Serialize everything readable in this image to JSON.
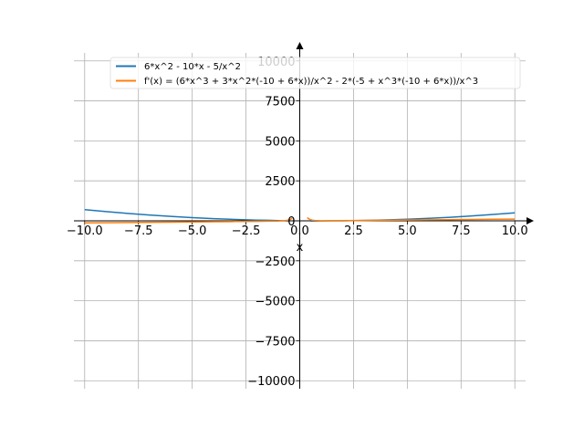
{
  "chart_data": {
    "type": "line",
    "title": "",
    "xlabel": "x",
    "ylabel": "",
    "xlim": [
      -10.5,
      10.5
    ],
    "ylim": [
      -10500,
      10500
    ],
    "grid": true,
    "legend_position": "top-right",
    "x_ticks": [
      -10.0,
      -7.5,
      -5.0,
      -2.5,
      0.0,
      2.5,
      5.0,
      7.5,
      10.0
    ],
    "x_tick_labels": [
      "−10.0",
      "−7.5",
      "−5.0",
      "−2.5",
      "0.0",
      "2.5",
      "5.0",
      "7.5",
      "10.0"
    ],
    "y_ticks": [
      -10000,
      -7500,
      -5000,
      -2500,
      0,
      2500,
      5000,
      7500,
      10000
    ],
    "y_tick_labels": [
      "−10000",
      "−7500",
      "−5000",
      "−2500",
      "0",
      "2500",
      "5000",
      "7500",
      "10000"
    ],
    "series": [
      {
        "name": "6*x^2 - 10*x - 5/x^2",
        "color": "#1f77b4",
        "x": [
          -10,
          -9,
          -8,
          -7,
          -6,
          -5,
          -4,
          -3,
          -2,
          -1.5,
          -1,
          -0.7,
          -0.5,
          null,
          0.5,
          0.7,
          1,
          1.5,
          2,
          3,
          4,
          5,
          6,
          7,
          8,
          9,
          10
        ],
        "y": [
          700,
          576,
          464,
          364,
          276,
          200,
          136,
          84,
          43,
          35,
          11,
          -3,
          -12,
          null,
          -23,
          -14,
          -9,
          -3.7,
          3,
          23,
          56,
          100,
          156,
          224,
          304,
          396,
          500
        ]
      },
      {
        "name": "f'(x) = (6*x^3 + 3*x^2*(-10 + 6*x))/x^2 - 2*(-5 + x^3*(-10 + 6*x))/x^3",
        "color": "#ff7f0e",
        "x": [
          -10,
          -8,
          -6,
          -4,
          -3,
          -2,
          -1.5,
          -1,
          -0.7,
          -0.5,
          -0.4,
          -0.35,
          null,
          0.35,
          0.4,
          0.5,
          0.6,
          0.7,
          1,
          1.5,
          2,
          3,
          4,
          5,
          6,
          7,
          8,
          9,
          10
        ],
        "y": [
          -130,
          -106,
          -82,
          -58,
          -46,
          -33,
          -24,
          -12,
          11,
          52,
          120,
          188,
          null,
          204,
          139,
          72,
          39,
          21,
          2,
          11,
          15,
          26,
          38,
          50,
          62,
          74,
          86,
          98,
          110
        ]
      }
    ]
  }
}
